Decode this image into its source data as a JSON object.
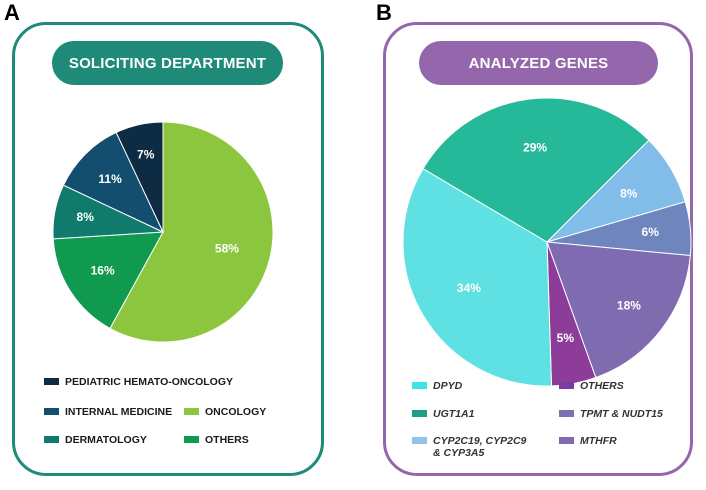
{
  "panels": [
    {
      "letter": "A",
      "title": "SOLICITING DEPARTMENT"
    },
    {
      "letter": "B",
      "title": "ANALYZED GENES"
    }
  ],
  "chart_data": [
    {
      "type": "pie",
      "title": "SOLICITING DEPARTMENT",
      "slices": [
        {
          "label": "ONCOLOGY",
          "value": 58,
          "text": "58%",
          "color": "#8cc63f"
        },
        {
          "label": "OTHERS",
          "value": 16,
          "text": "16%",
          "color": "#0f9a4f"
        },
        {
          "label": "DERMATOLOGY",
          "value": 8,
          "text": "8%",
          "color": "#107b6d"
        },
        {
          "label": "INTERNAL MEDICINE",
          "value": 11,
          "text": "11%",
          "color": "#134e6f"
        },
        {
          "label": "PEDIATRIC HEMATO-ONCOLOGY",
          "value": 7,
          "text": "7%",
          "color": "#0e2b44"
        }
      ],
      "legend": [
        {
          "label": "PEDIATRIC HEMATO-ONCOLOGY",
          "color": "#0e2b44"
        },
        {
          "label": "INTERNAL MEDICINE",
          "color": "#134e6f"
        },
        {
          "label": "ONCOLOGY",
          "color": "#8cc63f"
        },
        {
          "label": "DERMATOLOGY",
          "color": "#107b6d"
        },
        {
          "label": "OTHERS",
          "color": "#0f9a4f"
        }
      ]
    },
    {
      "type": "pie",
      "title": "ANALYZED GENES",
      "slices": [
        {
          "label": "CYP2C19, CYP2C9 & CYP3A5",
          "value": 8,
          "text": "8%",
          "color": "#82bdea"
        },
        {
          "label": "TPMT & NUDT15",
          "value": 6,
          "text": "6%",
          "color": "#6e85bd"
        },
        {
          "label": "MTHFR",
          "value": 18,
          "text": "18%",
          "color": "#7f6cb0"
        },
        {
          "label": "OTHERS",
          "value": 5,
          "text": "5%",
          "color": "#8d3c99"
        },
        {
          "label": "DPYD",
          "value": 34,
          "text": "34%",
          "color": "#5fe0e3"
        },
        {
          "label": "UGT1A1",
          "value": 29,
          "text": "29%",
          "color": "#25b99a"
        }
      ],
      "legend": [
        {
          "label": "DPYD",
          "color": "#3fe3e6"
        },
        {
          "label": "OTHERS",
          "color": "#7b3aa4"
        },
        {
          "label": "UGT1A1",
          "color": "#1e9e86"
        },
        {
          "label": "TPMT & NUDT15",
          "color": "#7a70b2"
        },
        {
          "label": "CYP2C19, CYP2C9\n& CYP3A5",
          "color": "#90c4ec"
        },
        {
          "label": "MTHFR",
          "color": "#7f6cb0"
        }
      ]
    }
  ]
}
